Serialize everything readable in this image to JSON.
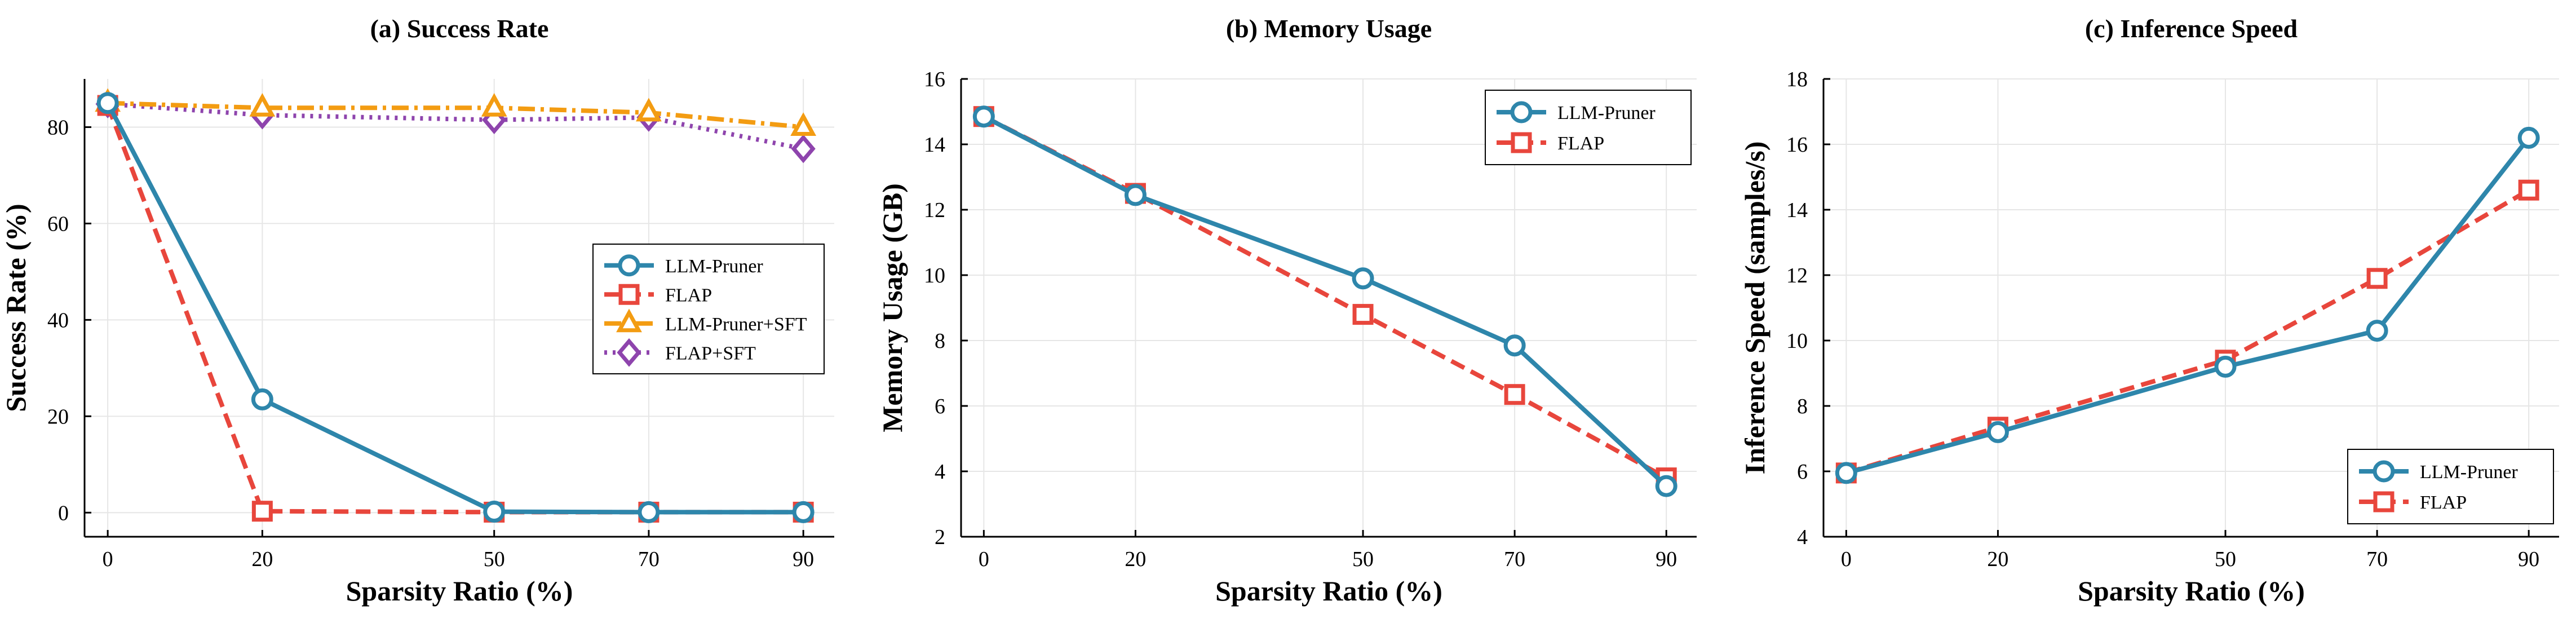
{
  "colors": {
    "llm_pruner": "#2e86ab",
    "flap": "#e8463c",
    "llm_pruner_sft": "#f39c12",
    "flap_sft": "#8e44ad",
    "grid": "#e6e6e6",
    "axis": "#000000"
  },
  "chart_data": [
    {
      "type": "line",
      "title": "(a) Success Rate",
      "xlabel": "Sparsity Ratio (%)",
      "ylabel": "Success Rate (%)",
      "x": [
        0,
        20,
        50,
        70,
        90
      ],
      "xticks": [
        "0",
        "20",
        "50",
        "70",
        "90"
      ],
      "yticks": [
        "0",
        "20",
        "40",
        "60",
        "80"
      ],
      "xlim": [
        -3,
        94
      ],
      "ylim": [
        -5,
        90
      ],
      "grid": true,
      "legend_position": "center-right",
      "series": [
        {
          "name": "LLM-Pruner",
          "values": [
            85.0,
            23.5,
            0.2,
            0.1,
            0.1
          ],
          "color": "#2e86ab",
          "style": "solid",
          "marker": "circle"
        },
        {
          "name": "FLAP",
          "values": [
            84.5,
            0.3,
            0.1,
            0.1,
            0.1
          ],
          "color": "#e8463c",
          "style": "dashed",
          "marker": "square"
        },
        {
          "name": "LLM-Pruner+SFT",
          "values": [
            85.0,
            84.0,
            84.0,
            83.0,
            80.0
          ],
          "color": "#f39c12",
          "style": "dashdot",
          "marker": "triangle"
        },
        {
          "name": "FLAP+SFT",
          "values": [
            84.8,
            82.5,
            81.5,
            82.0,
            75.5
          ],
          "color": "#8e44ad",
          "style": "dotted",
          "marker": "diamond"
        }
      ]
    },
    {
      "type": "line",
      "title": "(b) Memory Usage",
      "xlabel": "Sparsity Ratio (%)",
      "ylabel": "Memory Usage (GB)",
      "x": [
        0,
        20,
        50,
        70,
        90
      ],
      "xticks": [
        "0",
        "20",
        "50",
        "70",
        "90"
      ],
      "yticks": [
        "2",
        "4",
        "6",
        "8",
        "10",
        "12",
        "14",
        "16"
      ],
      "xlim": [
        -3,
        94
      ],
      "ylim": [
        2,
        16
      ],
      "grid": true,
      "legend_position": "top-right",
      "series": [
        {
          "name": "LLM-Pruner",
          "values": [
            14.85,
            12.45,
            9.9,
            7.85,
            3.55
          ],
          "color": "#2e86ab",
          "style": "solid",
          "marker": "circle"
        },
        {
          "name": "FLAP",
          "values": [
            14.85,
            12.5,
            8.8,
            6.35,
            3.8
          ],
          "color": "#e8463c",
          "style": "dashed",
          "marker": "square"
        }
      ]
    },
    {
      "type": "line",
      "title": "(c) Inference Speed",
      "xlabel": "Sparsity Ratio (%)",
      "ylabel": "Inference Speed (samples/s)",
      "x": [
        0,
        20,
        50,
        70,
        90
      ],
      "xticks": [
        "0",
        "20",
        "50",
        "70",
        "90"
      ],
      "yticks": [
        "4",
        "6",
        "8",
        "10",
        "12",
        "14",
        "16",
        "18"
      ],
      "xlim": [
        -3,
        94
      ],
      "ylim": [
        4,
        18
      ],
      "grid": true,
      "legend_position": "bottom-right",
      "series": [
        {
          "name": "LLM-Pruner",
          "values": [
            5.95,
            7.2,
            9.2,
            10.3,
            16.2
          ],
          "color": "#2e86ab",
          "style": "solid",
          "marker": "circle"
        },
        {
          "name": "FLAP",
          "values": [
            5.95,
            7.35,
            9.4,
            11.9,
            14.6
          ],
          "color": "#e8463c",
          "style": "dashed",
          "marker": "square"
        }
      ]
    }
  ]
}
